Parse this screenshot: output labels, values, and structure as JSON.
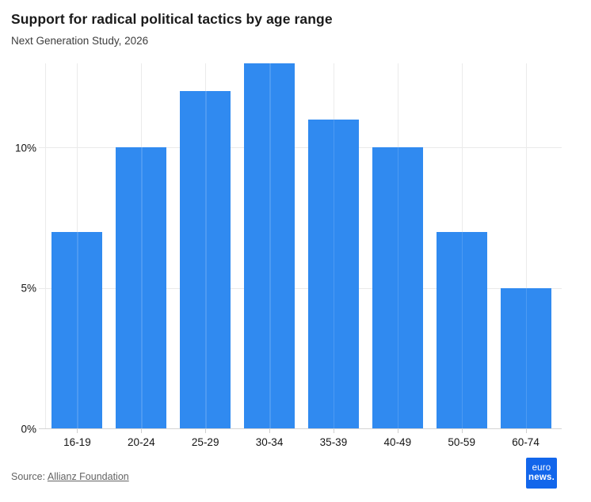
{
  "header": {
    "title": "Support for radical political tactics by age range",
    "subtitle": "Next Generation Study, 2026"
  },
  "chart_data": {
    "type": "bar",
    "categories": [
      "16-19",
      "20-24",
      "25-29",
      "30-34",
      "35-39",
      "40-49",
      "50-59",
      "60-74"
    ],
    "values": [
      7,
      10,
      12,
      13,
      11,
      10,
      7,
      5
    ],
    "title": "Support for radical political tactics by age range",
    "subtitle": "Next Generation Study, 2026",
    "xlabel": "",
    "ylabel": "",
    "unit": "%",
    "ylim": [
      0,
      13
    ],
    "yticks": [
      {
        "value": 0,
        "label": "0%"
      },
      {
        "value": 5,
        "label": "5%"
      },
      {
        "value": 10,
        "label": "10%"
      }
    ],
    "grid": true,
    "legend": "none",
    "bar_color": "#308af0"
  },
  "footer": {
    "source_prefix": "Source: ",
    "source_link": "Allianz Foundation",
    "logo_line1": "euro",
    "logo_line2": "news."
  },
  "colors": {
    "bar": "#308af0",
    "gridline": "#e9e9e9",
    "axis_line": "#d4d4d4",
    "logo_bg": "#1266eb",
    "title_text": "#1a1a1a",
    "label_text": "#141414",
    "source_text": "#646464"
  }
}
